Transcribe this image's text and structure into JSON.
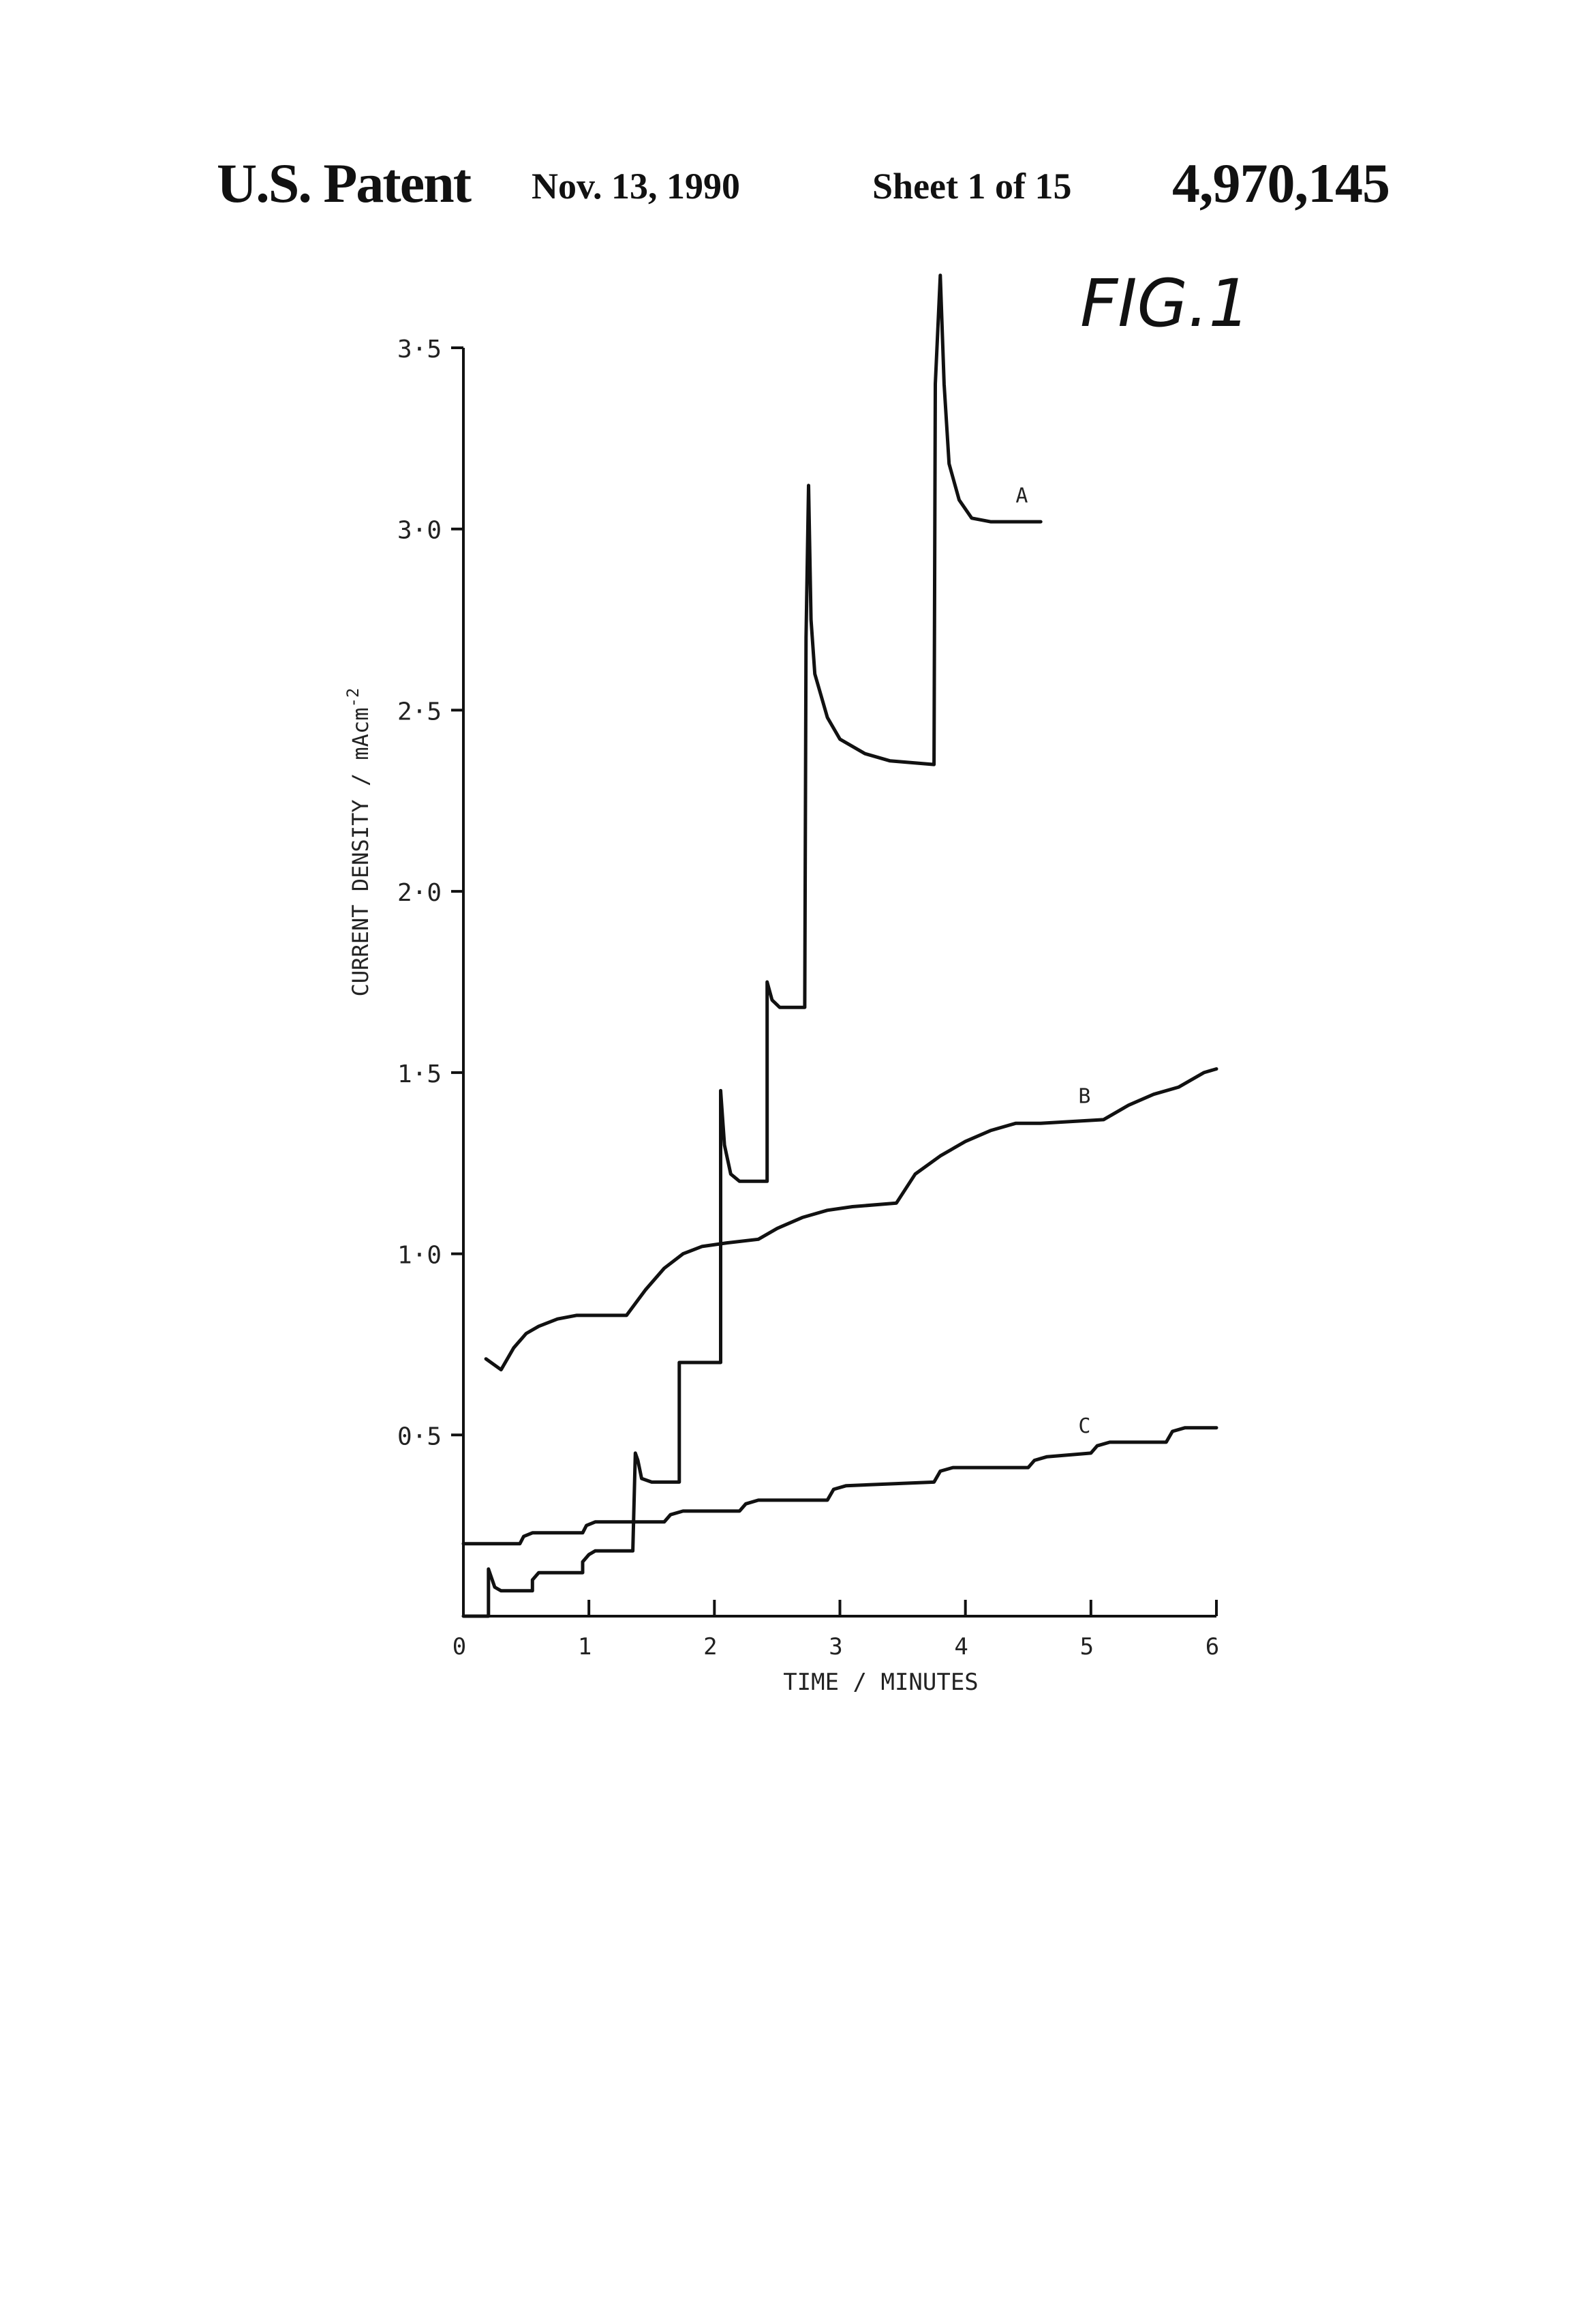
{
  "header": {
    "left": "U.S. Patent",
    "date": "Nov. 13, 1990",
    "sheet": "Sheet 1 of 15",
    "patent_number": "4,970,145"
  },
  "figure_label": "FIG.1",
  "chart_data": {
    "type": "line",
    "title": "",
    "xlabel": "TIME / MINUTES",
    "ylabel": "CURRENT DENSITY / mAcm",
    "ylabel_superscript": "-2",
    "xlim": [
      0,
      6
    ],
    "ylim": [
      0,
      3.5
    ],
    "x_ticks": [
      "0",
      "1",
      "2",
      "3",
      "4",
      "5",
      "6"
    ],
    "y_ticks": [
      "0·5",
      "1·0",
      "1·5",
      "2·0",
      "2·5",
      "3·0",
      "3·5"
    ],
    "grid": false,
    "series": [
      {
        "name": "A",
        "points": [
          [
            0.0,
            0.0
          ],
          [
            0.2,
            0.0
          ],
          [
            0.2,
            0.13
          ],
          [
            0.25,
            0.08
          ],
          [
            0.3,
            0.07
          ],
          [
            0.55,
            0.07
          ],
          [
            0.55,
            0.1
          ],
          [
            0.6,
            0.12
          ],
          [
            0.65,
            0.12
          ],
          [
            0.95,
            0.12
          ],
          [
            0.95,
            0.15
          ],
          [
            1.0,
            0.17
          ],
          [
            1.05,
            0.18
          ],
          [
            1.35,
            0.18
          ],
          [
            1.37,
            0.45
          ],
          [
            1.39,
            0.43
          ],
          [
            1.42,
            0.38
          ],
          [
            1.5,
            0.37
          ],
          [
            1.72,
            0.37
          ],
          [
            1.72,
            0.7
          ],
          [
            1.78,
            0.7
          ],
          [
            2.05,
            0.7
          ],
          [
            2.05,
            1.45
          ],
          [
            2.08,
            1.3
          ],
          [
            2.13,
            1.22
          ],
          [
            2.2,
            1.2
          ],
          [
            2.42,
            1.2
          ],
          [
            2.42,
            1.75
          ],
          [
            2.46,
            1.7
          ],
          [
            2.52,
            1.68
          ],
          [
            2.72,
            1.68
          ],
          [
            2.73,
            2.7
          ],
          [
            2.75,
            3.12
          ],
          [
            2.77,
            2.75
          ],
          [
            2.8,
            2.6
          ],
          [
            2.9,
            2.48
          ],
          [
            3.0,
            2.42
          ],
          [
            3.2,
            2.38
          ],
          [
            3.4,
            2.36
          ],
          [
            3.75,
            2.35
          ],
          [
            3.76,
            3.4
          ],
          [
            3.8,
            3.7
          ],
          [
            3.83,
            3.4
          ],
          [
            3.87,
            3.18
          ],
          [
            3.95,
            3.08
          ],
          [
            4.05,
            3.03
          ],
          [
            4.2,
            3.02
          ],
          [
            4.6,
            3.02
          ]
        ]
      },
      {
        "name": "B",
        "points": [
          [
            0.18,
            0.71
          ],
          [
            0.3,
            0.68
          ],
          [
            0.4,
            0.74
          ],
          [
            0.5,
            0.78
          ],
          [
            0.6,
            0.8
          ],
          [
            0.75,
            0.82
          ],
          [
            0.9,
            0.83
          ],
          [
            1.05,
            0.83
          ],
          [
            1.3,
            0.83
          ],
          [
            1.45,
            0.9
          ],
          [
            1.6,
            0.96
          ],
          [
            1.75,
            1.0
          ],
          [
            1.9,
            1.02
          ],
          [
            2.1,
            1.03
          ],
          [
            2.35,
            1.04
          ],
          [
            2.5,
            1.07
          ],
          [
            2.7,
            1.1
          ],
          [
            2.9,
            1.12
          ],
          [
            3.1,
            1.13
          ],
          [
            3.45,
            1.14
          ],
          [
            3.6,
            1.22
          ],
          [
            3.8,
            1.27
          ],
          [
            4.0,
            1.31
          ],
          [
            4.2,
            1.34
          ],
          [
            4.4,
            1.36
          ],
          [
            4.6,
            1.36
          ],
          [
            5.1,
            1.37
          ],
          [
            5.3,
            1.41
          ],
          [
            5.5,
            1.44
          ],
          [
            5.7,
            1.46
          ],
          [
            5.9,
            1.5
          ],
          [
            6.0,
            1.51
          ]
        ]
      },
      {
        "name": "C",
        "points": [
          [
            0.0,
            0.2
          ],
          [
            0.45,
            0.2
          ],
          [
            0.48,
            0.22
          ],
          [
            0.55,
            0.23
          ],
          [
            0.95,
            0.23
          ],
          [
            0.98,
            0.25
          ],
          [
            1.05,
            0.26
          ],
          [
            1.6,
            0.26
          ],
          [
            1.65,
            0.28
          ],
          [
            1.75,
            0.29
          ],
          [
            2.2,
            0.29
          ],
          [
            2.25,
            0.31
          ],
          [
            2.35,
            0.32
          ],
          [
            2.9,
            0.32
          ],
          [
            2.95,
            0.35
          ],
          [
            3.05,
            0.36
          ],
          [
            3.75,
            0.37
          ],
          [
            3.8,
            0.4
          ],
          [
            3.9,
            0.41
          ],
          [
            4.5,
            0.41
          ],
          [
            4.55,
            0.43
          ],
          [
            4.65,
            0.44
          ],
          [
            5.0,
            0.45
          ],
          [
            5.05,
            0.47
          ],
          [
            5.15,
            0.48
          ],
          [
            5.6,
            0.48
          ],
          [
            5.65,
            0.51
          ],
          [
            5.75,
            0.52
          ],
          [
            6.0,
            0.52
          ]
        ]
      }
    ]
  }
}
